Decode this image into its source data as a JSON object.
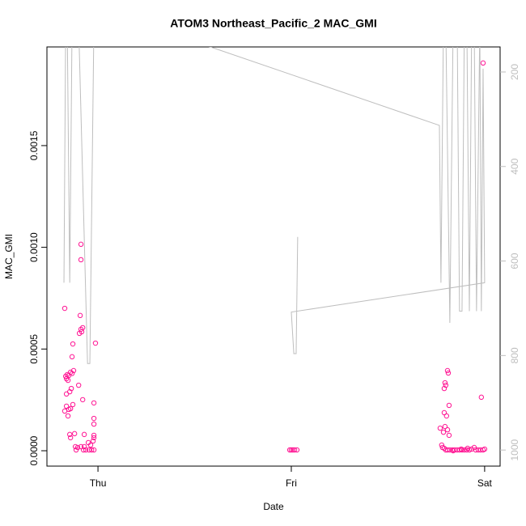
{
  "chart_data": {
    "type": "scatter",
    "title": "ATOM3 Northeast_Pacific_2 MAC_GMI",
    "x_label": "Date",
    "y_label": "MAC_GMI",
    "xlim": [
      -0.264,
      2.08
    ],
    "xticks": [
      {
        "value": 0,
        "label": "Thu"
      },
      {
        "value": 1,
        "label": "Fri"
      },
      {
        "value": 2,
        "label": "Sat"
      }
    ],
    "ylim": [
      -7.56e-05,
      0.001985
    ],
    "yticks": [
      {
        "value": 0,
        "label": "0.0000"
      },
      {
        "value": 0.0005,
        "label": "0.0005"
      },
      {
        "value": 0.001,
        "label": "0.0010"
      },
      {
        "value": 0.0015,
        "label": "0.0015"
      }
    ],
    "y2lim": [
      1034,
      147
    ],
    "y2ticks": [
      200,
      400,
      600,
      800,
      1000
    ],
    "series": [
      {
        "color": "#ff1493",
        "x": [
          -0.172,
          -0.167,
          -0.163,
          -0.159,
          -0.155,
          -0.151,
          -0.142,
          -0.134,
          -0.126,
          -0.172,
          -0.163,
          -0.151,
          -0.142,
          -0.13,
          -0.163,
          -0.146,
          -0.138,
          -0.155,
          -0.146,
          -0.142,
          -0.121,
          -0.134,
          -0.13,
          -0.117,
          -0.113,
          -0.105,
          -0.088,
          -0.1,
          -0.092,
          -0.096,
          -0.088,
          -0.079,
          -0.084,
          -0.088,
          -0.088,
          -0.079,
          -0.071,
          -0.071,
          -0.075,
          -0.063,
          -0.046,
          -0.033,
          -0.021,
          -0.05,
          -0.038,
          -0.021,
          -0.021,
          -0.021,
          -0.021,
          -0.021,
          -0.025,
          -0.013,
          0.992,
          1.0,
          1.008,
          1.017,
          1.029,
          1.992,
          1.983,
          1.808,
          1.812,
          1.795,
          1.799,
          1.791,
          1.816,
          1.791,
          1.803,
          1.77,
          1.795,
          1.787,
          1.808,
          1.816,
          1.778,
          1.782,
          1.791,
          1.799,
          1.808,
          1.82,
          1.833,
          1.845,
          1.858,
          1.87,
          1.883,
          1.895,
          1.908,
          1.921,
          1.933,
          1.946,
          1.954,
          1.967,
          1.979,
          1.992,
          2.0,
          1.837,
          1.879,
          1.912
        ],
        "values": [
          0.0007,
          0.000366,
          0.000354,
          0.000374,
          0.000346,
          0.00037,
          0.000386,
          0.00038,
          0.000394,
          0.000195,
          0.000219,
          0.000203,
          0.000207,
          0.000227,
          0.000279,
          0.00029,
          0.000306,
          0.000171,
          8e-05,
          6.4e-05,
          8.4e-05,
          0.000462,
          0.000525,
          2e-05,
          4e-06,
          1.6e-05,
          2e-05,
          0.000322,
          0.000665,
          0.000577,
          0.000597,
          0.000605,
          0.000585,
          0.001015,
          0.000939,
          0.000251,
          8e-05,
          2e-05,
          4e-06,
          4e-06,
          4e-06,
          4e-06,
          4e-06,
          4e-05,
          2.8e-05,
          0.000235,
          0.000159,
          0.000131,
          7.6e-05,
          6.4e-05,
          4.8e-05,
          0.000529,
          4e-06,
          4e-06,
          4e-06,
          4e-06,
          4e-06,
          0.001906,
          0.000263,
          0.000394,
          0.000382,
          0.000334,
          0.000322,
          0.000306,
          0.000223,
          0.000187,
          0.000171,
          0.000111,
          0.000119,
          9.1e-05,
          0.000103,
          7.6e-05,
          2.8e-05,
          1.6e-05,
          1.2e-05,
          4e-06,
          4e-06,
          4e-06,
          4e-06,
          4e-06,
          4e-06,
          4e-06,
          4e-06,
          4e-06,
          4e-06,
          4e-06,
          8e-06,
          1.6e-05,
          4e-06,
          4e-06,
          4e-06,
          4e-06,
          8e-06,
          0.0,
          8e-06,
          1.2e-05
        ]
      },
      {
        "color": "#bebebe",
        "axis": "y2",
        "x": [
          -0.176,
          -0.167,
          -0.159,
          -0.146,
          -0.134,
          -0.121,
          -0.1,
          -0.054,
          -0.042,
          -0.021,
          0.582,
          1.766,
          1.774,
          1.787,
          1.799,
          1.82,
          1.837,
          1.858,
          1.87,
          1.883,
          1.895,
          1.908,
          1.921,
          1.933,
          1.946,
          1.958,
          1.975,
          1.983,
          1.992,
          2.0,
          1.0,
          1.013,
          1.025,
          1.033
        ],
        "values": [
          646,
          100,
          100,
          646,
          100,
          100,
          100,
          817,
          817,
          100,
          147,
          313,
          646,
          100,
          100,
          731,
          100,
          100,
          706,
          706,
          100,
          100,
          706,
          100,
          100,
          706,
          100,
          706,
          193,
          646,
          708,
          796,
          796,
          549
        ]
      }
    ]
  }
}
